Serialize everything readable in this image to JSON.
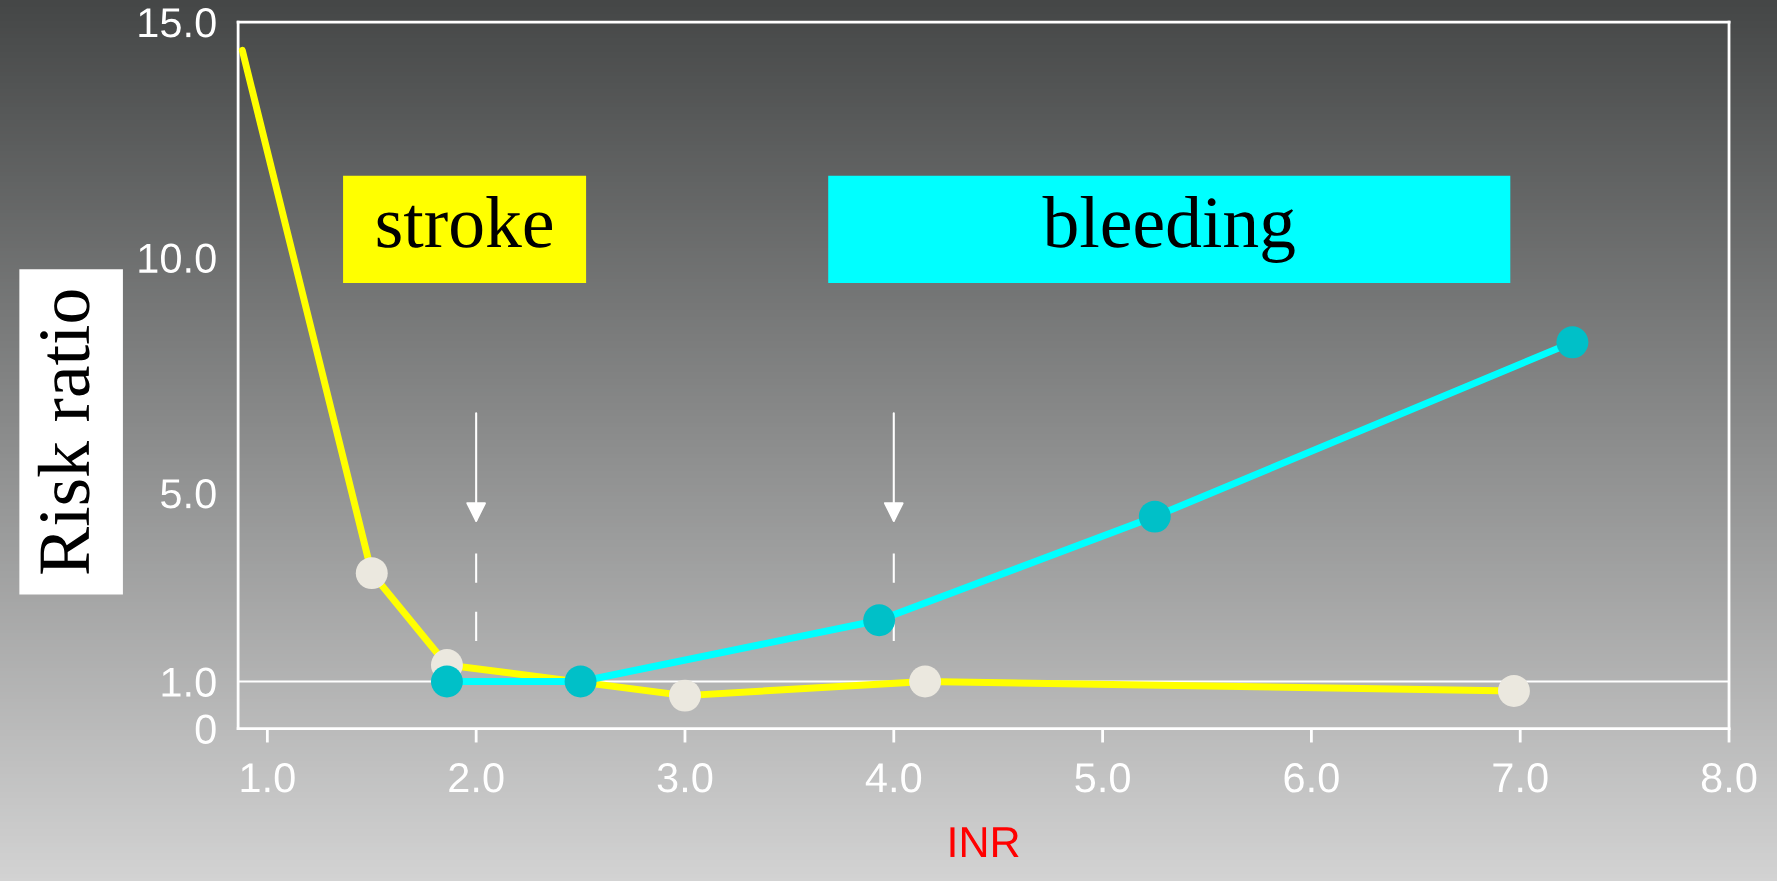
{
  "chart_data": {
    "type": "line",
    "xlabel": "INR",
    "ylabel": "Risk ratio",
    "xlim": [
      0.86,
      8.0
    ],
    "xticks": [
      {
        "value": 1,
        "label": "1.0"
      },
      {
        "value": 2,
        "label": "2.0"
      },
      {
        "value": 3,
        "label": "3.0"
      },
      {
        "value": 4,
        "label": "4.0"
      },
      {
        "value": 5,
        "label": "5.0"
      },
      {
        "value": 6,
        "label": "6.0"
      },
      {
        "value": 7,
        "label": "7.0"
      },
      {
        "value": 8,
        "label": "8.0"
      }
    ],
    "ylim": [
      0,
      15
    ],
    "yticks": [
      0,
      {
        "value": 1,
        "label": "1.0"
      },
      {
        "value": 5,
        "label": "5.0"
      },
      {
        "value": 10,
        "label": "10.0"
      },
      {
        "value": 15,
        "label": "15.0"
      }
    ],
    "marker": "circle",
    "series": [
      {
        "name": "stroke",
        "color": "#ffff00",
        "x": [
          0.88,
          1.5,
          1.86,
          3.0,
          4.15,
          6.97
        ],
        "values": [
          14.4,
          3.3,
          1.35,
          0.7,
          1.0,
          0.8
        ],
        "colors": [
          null,
          "#ebe8df",
          "#ebe8df",
          "#ebe8df",
          "#ebe8df",
          "#ebe8df"
        ]
      },
      {
        "name": "bleeding",
        "color": "#00ffff",
        "x": [
          1.86,
          2.5,
          3.93,
          5.25,
          7.25
        ],
        "values": [
          1.0,
          1.0,
          2.3,
          4.5,
          8.2
        ],
        "colors": [
          "#00c0c8",
          "#00c0c8",
          "#00c0c8",
          "#00c0c8",
          "#00c0c8"
        ]
      }
    ],
    "ref_lines": [
      {
        "axis": "y",
        "value": 1,
        "color": "#ffffff"
      },
      {
        "axis": "x",
        "value": 2,
        "color": "#ffffff",
        "line_style": "dashed"
      },
      {
        "axis": "x",
        "value": 4,
        "color": "#ffffff",
        "line_style": "dashed"
      }
    ]
  }
}
